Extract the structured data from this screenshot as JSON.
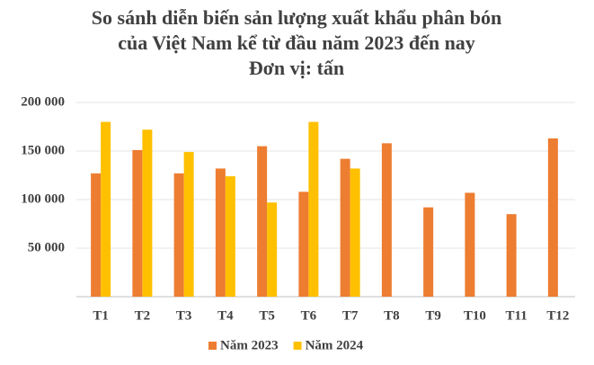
{
  "chart_data": {
    "type": "bar",
    "title": [
      "So sánh diễn biến sản lượng xuất khẩu phân bón",
      "của Việt Nam kể từ đầu năm 2023 đến nay",
      "Đơn vị: tấn"
    ],
    "categories": [
      "T1",
      "T2",
      "T3",
      "T4",
      "T5",
      "T6",
      "T7",
      "T8",
      "T9",
      "T10",
      "T11",
      "T12"
    ],
    "series": [
      {
        "name": "Năm 2023",
        "color": "#ed7d31",
        "values": [
          127000,
          151000,
          127000,
          132000,
          155000,
          108000,
          142000,
          158000,
          92000,
          107000,
          85000,
          163000
        ]
      },
      {
        "name": "Năm 2024",
        "color": "#ffc000",
        "values": [
          180000,
          172000,
          149000,
          124000,
          97000,
          180000,
          132000,
          null,
          null,
          null,
          null,
          null
        ]
      }
    ],
    "ylim": [
      0,
      200000
    ],
    "yticks": [
      {
        "value": 50000,
        "label": "50 000"
      },
      {
        "value": 100000,
        "label": "100 000"
      },
      {
        "value": 150000,
        "label": "150 000"
      },
      {
        "value": 200000,
        "label": "200 000"
      }
    ],
    "grid": true,
    "legend": "bottom"
  }
}
